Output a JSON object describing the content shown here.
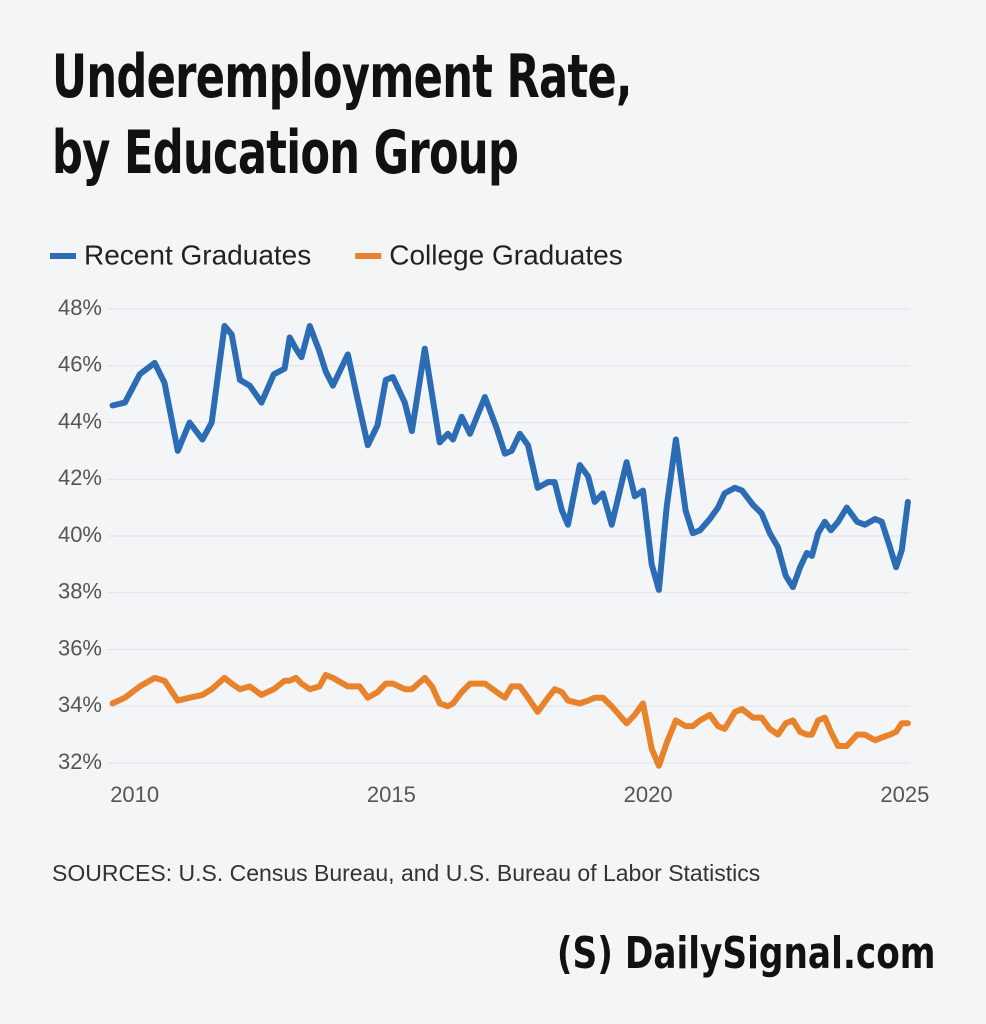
{
  "chart_data": {
    "type": "line",
    "title": [
      "Underemployment Rate,",
      "by Education Group"
    ],
    "source": "SOURCES: U.S. Census Bureau, and U.S. Bureau of Labor Statistics",
    "brand_mark": "(S)",
    "brand": "DailySignal.com",
    "x": [
      2009.57,
      2009.81,
      2010.1,
      2010.39,
      2010.58,
      2010.84,
      2011.07,
      2011.32,
      2011.5,
      2011.75,
      2011.89,
      2012.05,
      2012.24,
      2012.47,
      2012.71,
      2012.92,
      2013.02,
      2013.14,
      2013.25,
      2013.41,
      2013.6,
      2013.72,
      2013.86,
      2014.15,
      2014.38,
      2014.54,
      2014.73,
      2014.89,
      2015.03,
      2015.26,
      2015.4,
      2015.65,
      2015.79,
      2015.94,
      2016.1,
      2016.2,
      2016.37,
      2016.53,
      2016.82,
      2017.05,
      2017.21,
      2017.34,
      2017.5,
      2017.66,
      2017.85,
      2018.05,
      2018.18,
      2018.32,
      2018.44,
      2018.67,
      2018.83,
      2018.96,
      2019.12,
      2019.29,
      2019.58,
      2019.74,
      2019.9,
      2020.07,
      2020.21,
      2020.36,
      2020.54,
      2020.73,
      2020.87,
      2021.01,
      2021.2,
      2021.36,
      2021.49,
      2021.69,
      2021.83,
      2022.04,
      2022.21,
      2022.37,
      2022.53,
      2022.68,
      2022.82,
      2022.96,
      2023.09,
      2023.19,
      2023.31,
      2023.44,
      2023.56,
      2023.7,
      2023.87,
      2024.07,
      2024.22,
      2024.42,
      2024.55,
      2024.71,
      2024.83,
      2024.94,
      2025.06
    ],
    "series": [
      {
        "name": "Recent Graduates",
        "color": "#2b6cb4",
        "values": [
          44.6,
          44.7,
          45.7,
          46.1,
          45.4,
          43.0,
          44.0,
          43.4,
          44.0,
          47.4,
          47.1,
          45.5,
          45.3,
          44.7,
          45.7,
          45.9,
          47.0,
          46.6,
          46.3,
          47.4,
          46.5,
          45.8,
          45.3,
          46.4,
          44.5,
          43.2,
          43.9,
          45.5,
          45.6,
          44.7,
          43.7,
          46.6,
          45.0,
          43.3,
          43.6,
          43.4,
          44.2,
          43.6,
          44.9,
          43.8,
          42.9,
          43.0,
          43.6,
          43.2,
          41.7,
          41.9,
          41.9,
          40.9,
          40.4,
          42.5,
          42.1,
          41.2,
          41.5,
          40.4,
          42.6,
          41.4,
          41.6,
          39.0,
          38.1,
          41.0,
          43.4,
          40.9,
          40.1,
          40.2,
          40.6,
          41.0,
          41.5,
          41.7,
          41.6,
          41.1,
          40.8,
          40.1,
          39.6,
          38.6,
          38.2,
          38.9,
          39.4,
          39.3,
          40.1,
          40.5,
          40.2,
          40.5,
          41.0,
          40.5,
          40.4,
          40.6,
          40.5,
          39.6,
          38.9,
          39.5,
          41.2
        ]
      },
      {
        "name": "College Graduates",
        "color": "#e8832b",
        "values": [
          34.1,
          34.3,
          34.7,
          35.0,
          34.9,
          34.2,
          34.3,
          34.4,
          34.6,
          35.0,
          34.8,
          34.6,
          34.7,
          34.4,
          34.6,
          34.9,
          34.9,
          35.0,
          34.8,
          34.6,
          34.7,
          35.1,
          35.0,
          34.7,
          34.7,
          34.3,
          34.5,
          34.8,
          34.8,
          34.6,
          34.6,
          35.0,
          34.7,
          34.1,
          34.0,
          34.1,
          34.5,
          34.8,
          34.8,
          34.5,
          34.3,
          34.7,
          34.7,
          34.3,
          33.8,
          34.3,
          34.6,
          34.5,
          34.2,
          34.1,
          34.2,
          34.3,
          34.3,
          34.0,
          33.4,
          33.7,
          34.1,
          32.5,
          31.9,
          32.7,
          33.5,
          33.3,
          33.3,
          33.5,
          33.7,
          33.3,
          33.2,
          33.8,
          33.9,
          33.6,
          33.6,
          33.2,
          33.0,
          33.4,
          33.5,
          33.1,
          33.0,
          33.0,
          33.5,
          33.6,
          33.1,
          32.6,
          32.6,
          33.0,
          33.0,
          32.8,
          32.9,
          33.0,
          33.1,
          33.4,
          33.4
        ]
      }
    ],
    "xlim": [
      2009.5,
      2025.1
    ],
    "xticks": [
      2010,
      2015,
      2020,
      2025
    ],
    "ylim": [
      32,
      48
    ],
    "yticks": [
      {
        "value": 32,
        "label": "32%"
      },
      {
        "value": 34,
        "label": "34%"
      },
      {
        "value": 36,
        "label": "36%"
      },
      {
        "value": 38,
        "label": "38%"
      },
      {
        "value": 40,
        "label": "40%"
      },
      {
        "value": 42,
        "label": "42%"
      },
      {
        "value": 44,
        "label": "44%"
      },
      {
        "value": 46,
        "label": "46%"
      },
      {
        "value": 48,
        "label": "48%"
      }
    ],
    "grid": true,
    "legend": "top"
  }
}
